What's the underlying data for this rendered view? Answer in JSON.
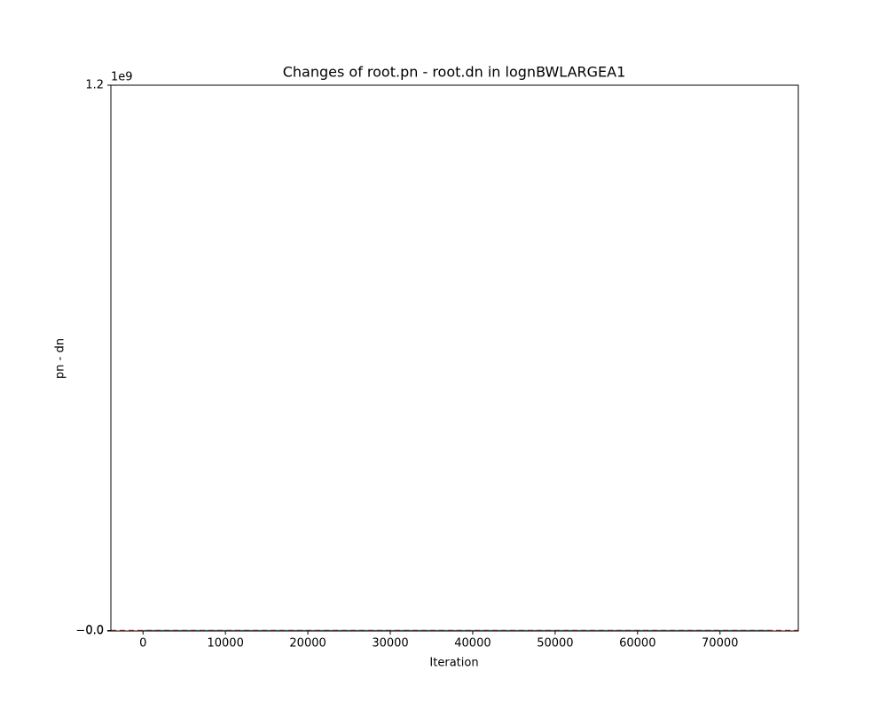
{
  "chart_data": {
    "type": "line",
    "title": "Changes of root.pn - root.dn in lognBWLARGEA1",
    "x_label": "Iteration",
    "y_label": "pn - dn",
    "y_offset_label": "1e9",
    "x": [
      0,
      76000
    ],
    "series": [
      {
        "name": "pn - dn",
        "color": "#17becf",
        "values": [
          0,
          0
        ]
      }
    ],
    "hline": {
      "value": 0,
      "color": "#d62728"
    },
    "xlim": [
      -3900,
      79500
    ],
    "xticks": [
      0,
      10000,
      20000,
      30000,
      40000,
      50000,
      60000,
      70000
    ],
    "ylim": [
      -1000000,
      1200000000
    ],
    "yticks": [
      {
        "value": -1000000,
        "label": "−0.0"
      },
      {
        "value": 0,
        "label": "0.0"
      },
      {
        "value": 1200000000,
        "label": "1.2"
      }
    ]
  }
}
